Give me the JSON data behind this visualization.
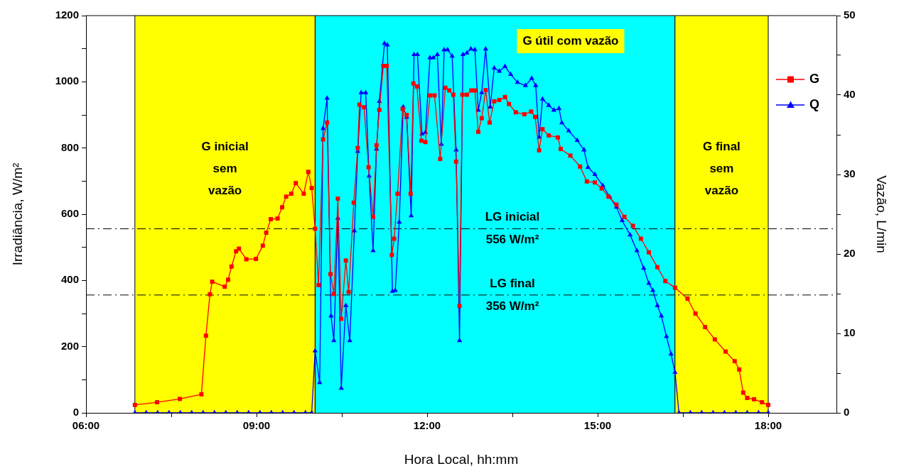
{
  "chart_data": {
    "type": "line",
    "xlabel": "Hora Local, hh:mm",
    "ylabel": "Irradiância, W/m²",
    "y2label": "Vazão, L/min",
    "xlim": [
      6,
      19.2
    ],
    "xticks": [
      {
        "value": 6,
        "label": "06:00"
      },
      {
        "value": 7.5,
        "label": null
      },
      {
        "value": 9,
        "label": "09:00"
      },
      {
        "value": 10.5,
        "label": null
      },
      {
        "value": 12,
        "label": "12:00"
      },
      {
        "value": 13.5,
        "label": null
      },
      {
        "value": 15,
        "label": "15:00"
      },
      {
        "value": 16.5,
        "label": null
      },
      {
        "value": 18,
        "label": "18:00"
      }
    ],
    "ylim": [
      0,
      1200
    ],
    "yticks": [
      0,
      {
        "value": 100,
        "label": null
      },
      200,
      {
        "value": 300,
        "label": null
      },
      400,
      {
        "value": 500,
        "label": null
      },
      600,
      {
        "value": 700,
        "label": null
      },
      800,
      {
        "value": 900,
        "label": null
      },
      1000,
      {
        "value": 1100,
        "label": null
      },
      1200
    ],
    "y2lim": [
      0,
      50
    ],
    "y2ticks": [
      0,
      {
        "value": 5,
        "label": null
      },
      10,
      {
        "value": 15,
        "label": null
      },
      20,
      {
        "value": 25,
        "label": null
      },
      30,
      {
        "value": 35,
        "label": null
      },
      40,
      {
        "value": 45,
        "label": null
      },
      50
    ],
    "grid": false,
    "legend": "top right",
    "line_style": "solid",
    "bands": [
      {
        "axis": "x",
        "from": 6.86,
        "to": 10.03,
        "label": "G inicial\nsem\nvazão",
        "color": "#ffff00"
      },
      {
        "axis": "x",
        "from": 10.03,
        "to": 16.36,
        "label": "G útil com vazão",
        "color": "#00ffff"
      },
      {
        "axis": "x",
        "from": 16.36,
        "to": 18.0,
        "label": "G final\nsem\nvazão",
        "color": "#ffff00"
      }
    ],
    "ref_lines": [
      {
        "axis": "y",
        "value": 556,
        "label": "LG inicial\n556 W/m²",
        "color": "#000000",
        "line_style": "dashed"
      },
      {
        "axis": "y",
        "value": 356,
        "label": "LG final\n356 W/m²",
        "color": "#000000",
        "line_style": "dashed"
      }
    ],
    "series": [
      {
        "name": "G",
        "color": "#ff0000",
        "marker": "square",
        "x": [
          6.86,
          7.25,
          7.65,
          8.03,
          8.11,
          8.18,
          8.22,
          8.44,
          8.5,
          8.56,
          8.64,
          8.69,
          8.82,
          8.99,
          9.11,
          9.17,
          9.25,
          9.37,
          9.45,
          9.52,
          9.61,
          9.69,
          9.83,
          9.91,
          9.97,
          10.03,
          10.09,
          10.17,
          10.24,
          10.3,
          10.36,
          10.43,
          10.49,
          10.57,
          10.62,
          10.71,
          10.78,
          10.81,
          10.89,
          10.97,
          11.05,
          11.11,
          11.16,
          11.23,
          11.29,
          11.38,
          11.42,
          11.48,
          11.57,
          11.64,
          11.71,
          11.76,
          11.82,
          11.9,
          11.97,
          12.05,
          12.13,
          12.23,
          12.32,
          12.39,
          12.46,
          12.51,
          12.57,
          12.62,
          12.7,
          12.78,
          12.84,
          12.9,
          12.96,
          13.03,
          13.1,
          13.18,
          13.27,
          13.37,
          13.44,
          13.56,
          13.71,
          13.83,
          13.9,
          13.97,
          14.03,
          14.14,
          14.3,
          14.35,
          14.52,
          14.69,
          14.81,
          14.95,
          15.07,
          15.19,
          15.33,
          15.47,
          15.62,
          15.76,
          15.9,
          16.05,
          16.19,
          16.36,
          16.58,
          16.72,
          16.89,
          17.06,
          17.25,
          17.41,
          17.49,
          17.56,
          17.63,
          17.75,
          17.89,
          18.0
        ],
        "values": [
          24,
          32,
          42,
          56,
          233,
          358,
          396,
          381,
          402,
          442,
          488,
          496,
          464,
          465,
          505,
          544,
          585,
          587,
          621,
          653,
          662,
          694,
          662,
          728,
          679,
          556,
          386,
          826,
          877,
          419,
          359,
          647,
          284,
          460,
          365,
          635,
          800,
          931,
          923,
          742,
          592,
          808,
          915,
          1048,
          1048,
          477,
          526,
          662,
          918,
          900,
          662,
          995,
          986,
          822,
          818,
          959,
          959,
          767,
          982,
          974,
          961,
          759,
          323,
          961,
          961,
          974,
          974,
          849,
          890,
          975,
          877,
          941,
          945,
          954,
          933,
          908,
          902,
          910,
          894,
          793,
          857,
          838,
          832,
          797,
          777,
          744,
          699,
          696,
          678,
          653,
          629,
          592,
          565,
          526,
          485,
          440,
          398,
          378,
          345,
          300,
          259,
          222,
          185,
          156,
          131,
          61,
          45,
          41,
          32,
          24
        ]
      },
      {
        "name": "Q",
        "color": "#0000ff",
        "marker": "triangle",
        "axis": "y2",
        "x": [
          6.86,
          7.06,
          7.26,
          7.46,
          7.66,
          7.86,
          8.06,
          8.26,
          8.46,
          8.66,
          8.86,
          9.06,
          9.26,
          9.46,
          9.66,
          9.86,
          9.97,
          10.03,
          10.11,
          10.17,
          10.24,
          10.31,
          10.36,
          10.43,
          10.49,
          10.57,
          10.64,
          10.72,
          10.78,
          10.84,
          10.92,
          10.98,
          11.05,
          11.11,
          11.16,
          11.25,
          11.3,
          11.39,
          11.44,
          11.51,
          11.58,
          11.64,
          11.72,
          11.77,
          11.83,
          11.91,
          11.97,
          12.05,
          12.11,
          12.18,
          12.25,
          12.3,
          12.36,
          12.44,
          12.51,
          12.57,
          12.63,
          12.7,
          12.77,
          12.84,
          12.9,
          12.96,
          13.03,
          13.11,
          13.18,
          13.27,
          13.37,
          13.47,
          13.59,
          13.73,
          13.84,
          13.91,
          13.97,
          14.03,
          14.14,
          14.23,
          14.32,
          14.37,
          14.49,
          14.64,
          14.76,
          14.83,
          14.95,
          15.09,
          15.21,
          15.33,
          15.43,
          15.57,
          15.69,
          15.81,
          15.9,
          15.97,
          16.05,
          16.12,
          16.21,
          16.29,
          16.36,
          16.43,
          16.63,
          16.83,
          17.03,
          17.23,
          17.43,
          17.63,
          17.83,
          18.0
        ],
        "values": [
          0,
          0,
          0,
          0,
          0,
          0,
          0,
          0,
          0,
          0,
          0,
          0,
          0,
          0,
          0,
          0,
          0,
          7.8,
          3.8,
          35.8,
          39.6,
          12.2,
          9.1,
          24.5,
          3.1,
          13.5,
          9.1,
          22.9,
          32.9,
          40.3,
          40.3,
          29.8,
          20.4,
          33.2,
          39.2,
          46.5,
          46.3,
          15.3,
          15.4,
          24.0,
          38.5,
          37.2,
          24.8,
          45.1,
          45.1,
          35.1,
          35.3,
          44.7,
          44.7,
          45.1,
          33.8,
          45.7,
          45.7,
          44.9,
          33.1,
          9.1,
          45.1,
          45.3,
          45.8,
          45.7,
          38.1,
          40.3,
          45.8,
          38.5,
          43.4,
          43.0,
          43.6,
          42.6,
          41.6,
          41.2,
          42.1,
          41.2,
          34.7,
          39.5,
          38.7,
          38.1,
          38.3,
          36.5,
          35.5,
          34.3,
          33.1,
          30.9,
          30.0,
          28.6,
          27.2,
          25.9,
          24.2,
          22.4,
          20.4,
          18.2,
          16.3,
          15.4,
          13.5,
          12.2,
          9.6,
          7.4,
          5.1,
          0,
          0,
          0,
          0,
          0,
          0,
          0,
          0,
          0
        ]
      }
    ]
  }
}
